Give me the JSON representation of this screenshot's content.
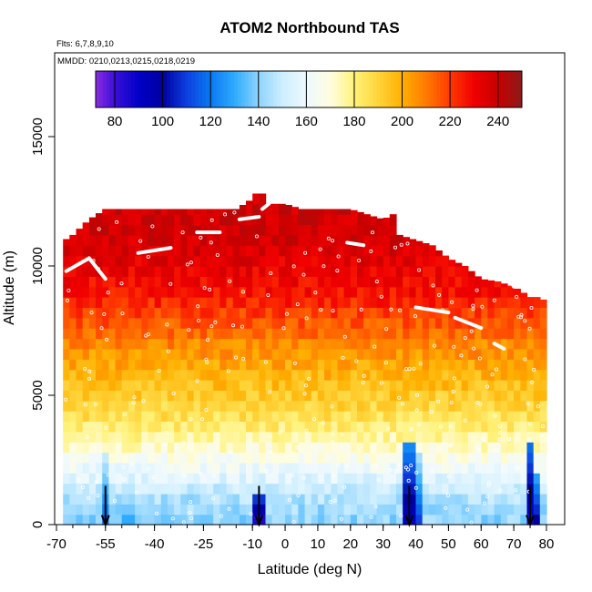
{
  "chart_data": {
    "type": "heatmap",
    "title": "ATOM2 Northbound TAS",
    "flights_note": "Flts: 6,7,8,9,10",
    "dates_note": "MMDD: 0210,0213,0215,0218,0219",
    "xlabel": "Latitude (deg N)",
    "ylabel": "Altitude (m)",
    "xlim": [
      -70,
      82
    ],
    "ylim": [
      0,
      17500
    ],
    "x_ticks": [
      -70,
      -55,
      -40,
      -25,
      -10,
      0,
      10,
      20,
      30,
      40,
      50,
      60,
      70,
      80
    ],
    "x_minor_tick_step": 5,
    "y_ticks": [
      0,
      5000,
      10000,
      15000
    ],
    "colorbar": {
      "min": 72,
      "max": 250,
      "ticks": [
        80,
        100,
        120,
        140,
        160,
        180,
        200,
        220,
        240
      ],
      "separators": [
        80,
        100,
        120,
        140,
        160,
        180,
        200,
        220,
        240
      ],
      "colors": [
        [
          72,
          "#8a2be2"
        ],
        [
          80,
          "#3a10d8"
        ],
        [
          90,
          "#0000c8"
        ],
        [
          100,
          "#00009e"
        ],
        [
          110,
          "#0d3fe0"
        ],
        [
          120,
          "#0a7af0"
        ],
        [
          130,
          "#2eaaff"
        ],
        [
          140,
          "#8ed4ff"
        ],
        [
          150,
          "#cdeeff"
        ],
        [
          160,
          "#eef9ff"
        ],
        [
          170,
          "#fffde0"
        ],
        [
          180,
          "#fff27a"
        ],
        [
          190,
          "#ffd43a"
        ],
        [
          200,
          "#ffb000"
        ],
        [
          210,
          "#ff7a00"
        ],
        [
          220,
          "#ff3a00"
        ],
        [
          230,
          "#f00000"
        ],
        [
          240,
          "#c80000"
        ],
        [
          250,
          "#8c1a1a"
        ]
      ]
    },
    "tas_profile_alt_m": [
      0,
      1000,
      2000,
      3000,
      4000,
      5000,
      6000,
      7000,
      8000,
      9000,
      10000,
      11000,
      12000,
      13000
    ],
    "tas_profile_kts": [
      140,
      145,
      158,
      172,
      184,
      193,
      200,
      208,
      218,
      227,
      233,
      237,
      238,
      238
    ],
    "ceiling_profile": {
      "lat": [
        -70,
        -65,
        -60,
        -55,
        -50,
        -45,
        -40,
        -35,
        -30,
        -25,
        -20,
        -15,
        -10,
        -8,
        -5,
        0,
        5,
        10,
        15,
        20,
        25,
        30,
        33,
        35,
        40,
        45,
        50,
        55,
        60,
        65,
        70,
        75,
        78,
        80
      ],
      "alt_m": [
        10800,
        11200,
        11800,
        12200,
        12200,
        12200,
        12200,
        12200,
        12200,
        12200,
        12200,
        12200,
        12600,
        13000,
        12400,
        12400,
        12200,
        12200,
        12200,
        12200,
        12000,
        11800,
        12000,
        11200,
        11000,
        10800,
        10300,
        10000,
        9500,
        9400,
        9200,
        8800,
        8800,
        8600
      ]
    },
    "slow_columns": [
      {
        "lat": -55,
        "tas_kts": 115,
        "top_m": 2500
      },
      {
        "lat": -48,
        "tas_kts": 130,
        "top_m": 2000
      },
      {
        "lat": -8,
        "tas_kts": 85,
        "top_m": 1200
      },
      {
        "lat": 38,
        "tas_kts": 90,
        "top_m": 3000
      },
      {
        "lat": 40,
        "tas_kts": 110,
        "top_m": 2500
      },
      {
        "lat": 75,
        "tas_kts": 85,
        "top_m": 3000
      },
      {
        "lat": 77,
        "tas_kts": 100,
        "top_m": 2000
      }
    ],
    "flight_tracks": [
      {
        "lat": [
          -67,
          -60
        ],
        "alt_m": [
          9800,
          10300
        ]
      },
      {
        "lat": [
          -60,
          -55
        ],
        "alt_m": [
          10300,
          9500
        ]
      },
      {
        "lat": [
          -45,
          -35
        ],
        "alt_m": [
          10500,
          10700
        ]
      },
      {
        "lat": [
          -27,
          -20
        ],
        "alt_m": [
          11300,
          11300
        ]
      },
      {
        "lat": [
          -14,
          -8
        ],
        "alt_m": [
          11800,
          11900
        ]
      },
      {
        "lat": [
          -7,
          -5
        ],
        "alt_m": [
          12200,
          12400
        ]
      },
      {
        "lat": [
          19,
          24
        ],
        "alt_m": [
          10900,
          10800
        ]
      },
      {
        "lat": [
          35,
          38
        ],
        "alt_m": [
          11800,
          11600
        ]
      },
      {
        "lat": [
          40,
          50
        ],
        "alt_m": [
          8400,
          8200
        ]
      },
      {
        "lat": [
          52,
          60
        ],
        "alt_m": [
          8000,
          7600
        ]
      },
      {
        "lat": [
          64,
          67
        ],
        "alt_m": [
          7000,
          6800
        ]
      },
      {
        "lat": [
          67,
          70
        ],
        "alt_m": [
          10000,
          9200
        ]
      }
    ],
    "descent_arrows_lat": [
      -55,
      -8,
      38,
      75
    ]
  }
}
